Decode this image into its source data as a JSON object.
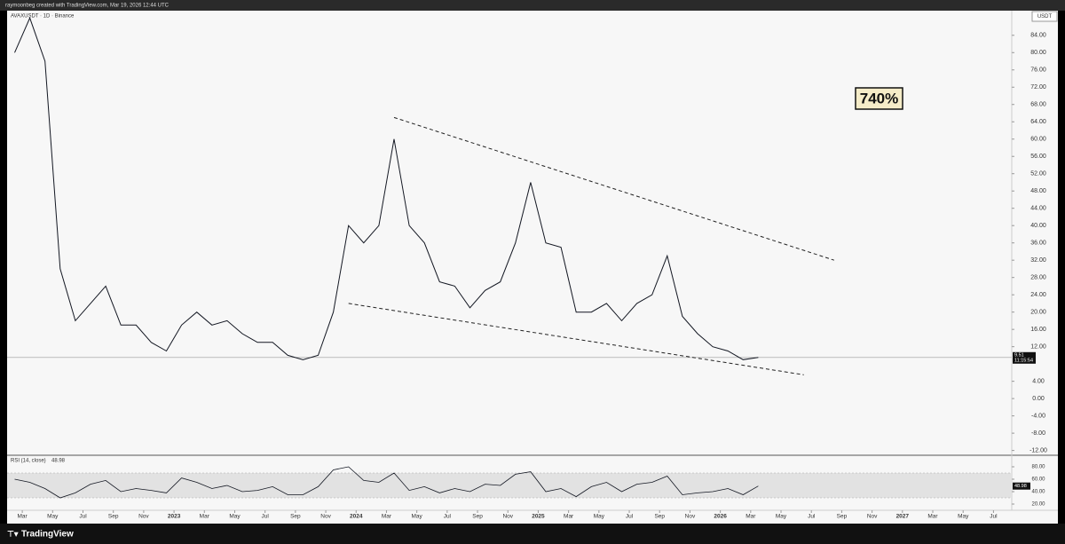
{
  "chart_data": {
    "type": "line",
    "credit": "raymoonbeg created with TradingView.com, Mar 19, 2026 12:44 UTC",
    "title": "AVAXUSDT · 1D · Binance",
    "brand": "TradingView",
    "axis_unit": "USDT",
    "annotation": "740%",
    "xlim": [
      "2022-02",
      "2027-08"
    ],
    "x": [
      "2022-02",
      "2022-03",
      "2022-04",
      "2022-05",
      "2022-06",
      "2022-07",
      "2022-08",
      "2022-09",
      "2022-10",
      "2022-11",
      "2022-12",
      "2023-01",
      "2023-02",
      "2023-03",
      "2023-04",
      "2023-05",
      "2023-06",
      "2023-07",
      "2023-08",
      "2023-09",
      "2023-10",
      "2023-11",
      "2023-12",
      "2024-01",
      "2024-02",
      "2024-03",
      "2024-04",
      "2024-05",
      "2024-06",
      "2024-07",
      "2024-08",
      "2024-09",
      "2024-10",
      "2024-11",
      "2024-12",
      "2025-01",
      "2025-02",
      "2025-03",
      "2025-04",
      "2025-05",
      "2025-06",
      "2025-07",
      "2025-08",
      "2025-09",
      "2025-10",
      "2025-11",
      "2025-12",
      "2026-01",
      "2026-02",
      "2026-03"
    ],
    "series": [
      {
        "name": "AVAXUSDT",
        "color": "#131722",
        "values": [
          80,
          88,
          78,
          30,
          18,
          22,
          26,
          17,
          17,
          13,
          11,
          17,
          20,
          17,
          18,
          15,
          13,
          13,
          10,
          9,
          10,
          20,
          40,
          36,
          40,
          60,
          40,
          36,
          27,
          26,
          21,
          25,
          27,
          36,
          50,
          36,
          35,
          20,
          20,
          22,
          18,
          22,
          24,
          33,
          19,
          15,
          12,
          11,
          9,
          9.51
        ]
      }
    ],
    "ylim": [
      -12.9,
      89.7
    ],
    "yticks": [
      {
        "value": 84,
        "label": "84.00"
      },
      {
        "value": 80,
        "label": "80.00"
      },
      {
        "value": 76,
        "label": "76.00"
      },
      {
        "value": 72,
        "label": "72.00"
      },
      {
        "value": 68,
        "label": "68.00"
      },
      {
        "value": 64,
        "label": "64.00"
      },
      {
        "value": 60,
        "label": "60.00"
      },
      {
        "value": 56,
        "label": "56.00"
      },
      {
        "value": 52,
        "label": "52.00"
      },
      {
        "value": 48,
        "label": "48.00"
      },
      {
        "value": 44,
        "label": "44.00"
      },
      {
        "value": 40,
        "label": "40.00"
      },
      {
        "value": 36,
        "label": "36.00"
      },
      {
        "value": 32,
        "label": "32.00"
      },
      {
        "value": 28,
        "label": "28.00"
      },
      {
        "value": 24,
        "label": "24.00"
      },
      {
        "value": 20,
        "label": "20.00"
      },
      {
        "value": 16,
        "label": "16.00"
      },
      {
        "value": 12,
        "label": "12.00"
      },
      {
        "value": 4,
        "label": "4.00"
      },
      {
        "value": 0,
        "label": "0.00"
      },
      {
        "value": -4,
        "label": "-4.00"
      },
      {
        "value": -8,
        "label": "-8.00"
      },
      {
        "value": -12,
        "label": "-12.00"
      }
    ],
    "last_price": 9.51,
    "countdown": "11:15:54",
    "trendlines": [
      {
        "x": [
          "2024-03",
          "2026-08"
        ],
        "values": [
          65,
          32
        ]
      },
      {
        "x": [
          "2023-12",
          "2026-06"
        ],
        "values": [
          22,
          5.5
        ]
      }
    ],
    "rsi": {
      "title": "RSI (14, close)",
      "last": 48.98,
      "color": "#131722",
      "values": [
        60,
        55,
        45,
        30,
        38,
        52,
        58,
        40,
        45,
        42,
        38,
        62,
        55,
        45,
        50,
        40,
        42,
        48,
        35,
        35,
        48,
        75,
        80,
        58,
        55,
        70,
        42,
        48,
        38,
        45,
        40,
        52,
        50,
        68,
        72,
        40,
        45,
        32,
        48,
        55,
        40,
        52,
        55,
        65,
        35,
        38,
        40,
        45,
        35,
        48.98
      ],
      "ylim": [
        10,
        95.7
      ],
      "band": [
        30,
        70
      ],
      "yticks": [
        {
          "value": 80,
          "label": "80.00"
        },
        {
          "value": 60,
          "label": "60.00"
        },
        {
          "value": 40,
          "label": "40.00"
        },
        {
          "value": 20,
          "label": "20.00"
        }
      ]
    },
    "xticks": [
      {
        "value": "2022-03",
        "label": "Mar"
      },
      {
        "value": "2022-05",
        "label": "May"
      },
      {
        "value": "2022-07",
        "label": "Jul"
      },
      {
        "value": "2022-09",
        "label": "Sep"
      },
      {
        "value": "2022-11",
        "label": "Nov"
      },
      {
        "value": "2023-01",
        "label": "2023"
      },
      {
        "value": "2023-03",
        "label": "Mar"
      },
      {
        "value": "2023-05",
        "label": "May"
      },
      {
        "value": "2023-07",
        "label": "Jul"
      },
      {
        "value": "2023-09",
        "label": "Sep"
      },
      {
        "value": "2023-11",
        "label": "Nov"
      },
      {
        "value": "2024-01",
        "label": "2024"
      },
      {
        "value": "2024-03",
        "label": "Mar"
      },
      {
        "value": "2024-05",
        "label": "May"
      },
      {
        "value": "2024-07",
        "label": "Jul"
      },
      {
        "value": "2024-09",
        "label": "Sep"
      },
      {
        "value": "2024-11",
        "label": "Nov"
      },
      {
        "value": "2025-01",
        "label": "2025"
      },
      {
        "value": "2025-03",
        "label": "Mar"
      },
      {
        "value": "2025-05",
        "label": "May"
      },
      {
        "value": "2025-07",
        "label": "Jul"
      },
      {
        "value": "2025-09",
        "label": "Sep"
      },
      {
        "value": "2025-11",
        "label": "Nov"
      },
      {
        "value": "2026-01",
        "label": "2026"
      },
      {
        "value": "2026-03",
        "label": "Mar"
      },
      {
        "value": "2026-05",
        "label": "May"
      },
      {
        "value": "2026-07",
        "label": "Jul"
      },
      {
        "value": "2026-09",
        "label": "Sep"
      },
      {
        "value": "2026-11",
        "label": "Nov"
      },
      {
        "value": "2027-01",
        "label": "2027"
      },
      {
        "value": "2027-03",
        "label": "Mar"
      },
      {
        "value": "2027-05",
        "label": "May"
      },
      {
        "value": "2027-07",
        "label": "Jul"
      }
    ]
  }
}
